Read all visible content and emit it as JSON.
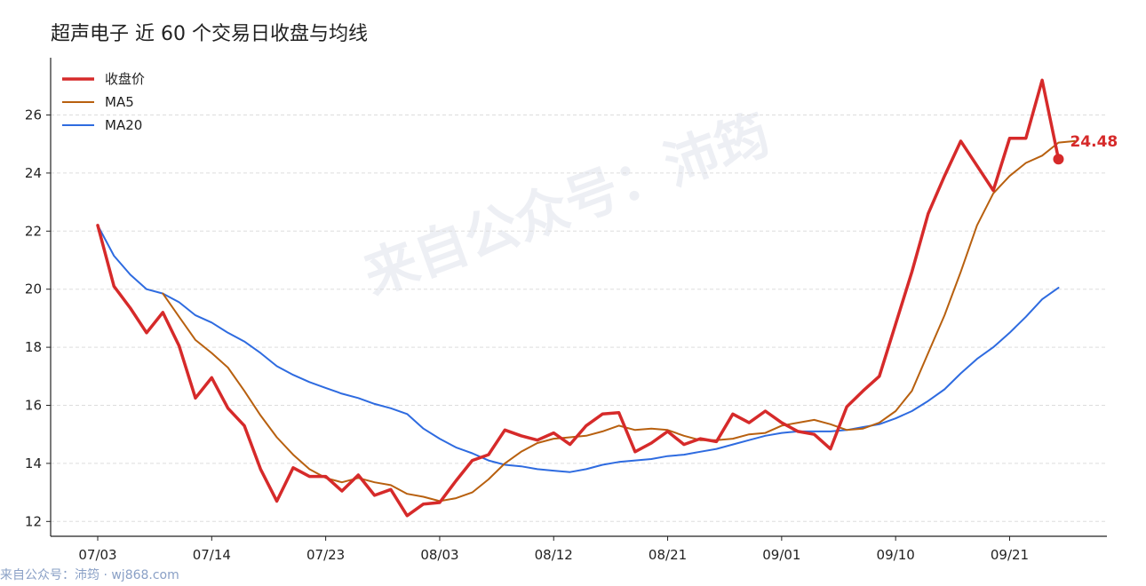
{
  "title": "超声电子 近 60 个交易日收盘与均线",
  "footer": "来自公众号：沛筠 · wj868.com",
  "watermark": "来自公众号：沛筠",
  "colors": {
    "close": "#d62a2a",
    "ma5": "#b8600f",
    "ma20": "#2e6be0",
    "grid": "#dddddd",
    "axis": "#222222"
  },
  "chart_data": {
    "type": "line",
    "title": "超声电子 近 60 个交易日收盘与均线",
    "xlabel": "",
    "ylabel": "",
    "ylim": [
      11.8,
      27.9
    ],
    "yticks": [
      12,
      14,
      16,
      18,
      20,
      22,
      24,
      26
    ],
    "xticks": [
      {
        "index": 0,
        "label": "07/03"
      },
      {
        "index": 7,
        "label": "07/14"
      },
      {
        "index": 14,
        "label": "07/23"
      },
      {
        "index": 21,
        "label": "08/03"
      },
      {
        "index": 28,
        "label": "08/12"
      },
      {
        "index": 35,
        "label": "08/21"
      },
      {
        "index": 42,
        "label": "09/01"
      },
      {
        "index": 49,
        "label": "09/10"
      },
      {
        "index": 56,
        "label": "09/21"
      }
    ],
    "grid": "horizontal",
    "legend_position": "top-left",
    "last_value_label": "24.48",
    "series": [
      {
        "name": "收盘价",
        "start_index": 0,
        "values": [
          22.2,
          20.1,
          19.35,
          18.5,
          19.2,
          18.05,
          16.25,
          16.95,
          15.9,
          15.3,
          13.8,
          12.7,
          13.85,
          13.55,
          13.55,
          13.05,
          13.6,
          12.9,
          13.1,
          12.2,
          12.6,
          12.65,
          13.4,
          14.1,
          14.3,
          15.15,
          14.95,
          14.8,
          15.05,
          14.65,
          15.3,
          15.7,
          15.75,
          14.4,
          14.7,
          15.1,
          14.65,
          14.85,
          14.75,
          15.7,
          15.4,
          15.8,
          15.4,
          15.1,
          15.0,
          14.5,
          15.95,
          16.5,
          17.0,
          18.8,
          20.6,
          22.6,
          23.9,
          25.1,
          24.25,
          23.4,
          25.2,
          25.2,
          27.2,
          24.48
        ]
      },
      {
        "name": "MA5",
        "start_index": 4,
        "values": [
          19.85,
          19.05,
          18.25,
          17.8,
          17.3,
          16.5,
          15.65,
          14.9,
          14.3,
          13.8,
          13.5,
          13.35,
          13.5,
          13.35,
          13.25,
          12.95,
          12.85,
          12.7,
          12.8,
          13.0,
          13.45,
          14.0,
          14.4,
          14.7,
          14.85,
          14.9,
          14.95,
          15.1,
          15.3,
          15.15,
          15.2,
          15.15,
          14.95,
          14.8,
          14.8,
          14.85,
          15.0,
          15.05,
          15.3,
          15.4,
          15.5,
          15.35,
          15.15,
          15.2,
          15.4,
          15.8,
          16.5,
          17.8,
          19.1,
          20.6,
          22.2,
          23.3,
          23.9,
          24.35,
          24.6,
          25.05,
          25.1
        ]
      },
      {
        "name": "MA20",
        "start_index": 0,
        "values": [
          22.2,
          21.15,
          20.5,
          20.0,
          19.85,
          19.55,
          19.1,
          18.85,
          18.5,
          18.2,
          17.8,
          17.35,
          17.05,
          16.8,
          16.6,
          16.4,
          16.25,
          16.05,
          15.9,
          15.7,
          15.2,
          14.85,
          14.55,
          14.35,
          14.1,
          13.95,
          13.9,
          13.8,
          13.75,
          13.7,
          13.8,
          13.95,
          14.05,
          14.1,
          14.15,
          14.25,
          14.3,
          14.4,
          14.5,
          14.65,
          14.8,
          14.95,
          15.05,
          15.1,
          15.1,
          15.1,
          15.15,
          15.25,
          15.35,
          15.55,
          15.8,
          16.15,
          16.55,
          17.1,
          17.6,
          18.0,
          18.5,
          19.05,
          19.65,
          20.05
        ]
      }
    ]
  }
}
